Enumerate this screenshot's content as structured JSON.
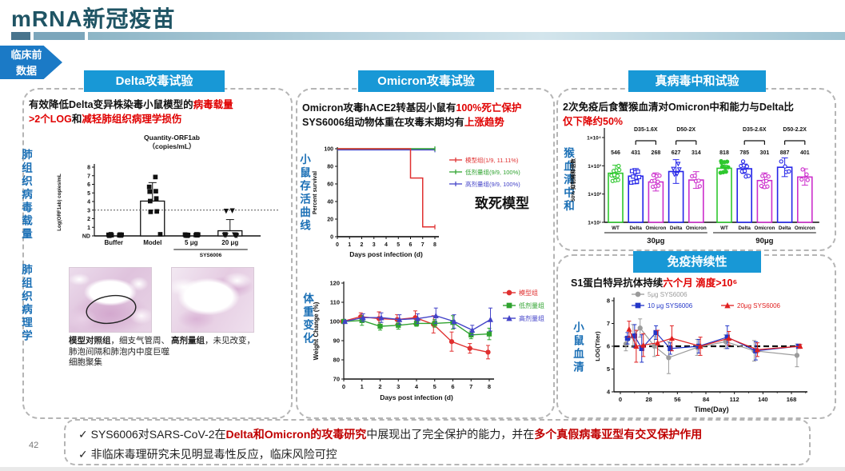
{
  "slide": {
    "title": "mRNA新冠疫苗",
    "page_number": "42",
    "stage_badge_line1": "临床前",
    "stage_badge_line2": "数据",
    "colors": {
      "accent_blue": "#1898d6",
      "title_teal": "#1f5464",
      "emphasis_red": "#e00000",
      "side_label_blue": "#1a6fb5",
      "badge_blue": "#1b7ac6"
    }
  },
  "panels": {
    "delta": {
      "header": "Delta攻毒试验",
      "headline": [
        [
          {
            "t": "有效降低Delta变异株染毒小鼠模型的"
          },
          {
            "t": "病毒载量",
            "c": "#e00000"
          }
        ],
        [
          {
            "t": ">2个LOG",
            "c": "#e00000"
          },
          {
            "t": "和"
          },
          {
            "t": "减轻肺组织病理学损伤",
            "c": "#e00000"
          }
        ]
      ],
      "side_labels": [
        "肺组织病毒载量",
        "肺组织病理学"
      ],
      "histology_captions": [
        [
          {
            "t": "模型对照组",
            "b": true
          },
          {
            "t": "，细支气管周、肺泡间隔和肺泡内中度巨噬细胞聚集"
          }
        ],
        [
          {
            "t": "高剂量组",
            "b": true
          },
          {
            "t": "，未见改变，"
          }
        ]
      ]
    },
    "omicron": {
      "header": "Omicron攻毒试验",
      "headline": [
        [
          {
            "t": "Omicron攻毒hACE2转基因小鼠有"
          },
          {
            "t": "100%死亡保护",
            "c": "#e00000"
          }
        ],
        [
          {
            "t": "SYS6006组动物体重在攻毒末期均有"
          },
          {
            "t": "上涨趋势",
            "c": "#e00000"
          }
        ]
      ],
      "side_labels": [
        "小鼠存活曲线",
        "体重变化"
      ]
    },
    "neutralization": {
      "header": "真病毒中和试验",
      "headline": [
        [
          {
            "t": "2次免疫后食蟹猴血清对Omicron中和能力与Delta比"
          }
        ],
        [
          {
            "t": "仅下降约50%",
            "c": "#e00000"
          }
        ]
      ],
      "side_labels": [
        "猴血清中和"
      ]
    },
    "persistence": {
      "header": "免疫持续性",
      "headline": [
        [
          {
            "t": "S1蛋白特异抗体持续"
          },
          {
            "t": "六个月 滴度>10⁶",
            "c": "#e00000"
          }
        ]
      ],
      "side_labels": [
        "小鼠血清"
      ]
    }
  },
  "summary": {
    "check": "✓",
    "lines": [
      [
        {
          "t": " SYS6006对SARS-CoV-2在"
        },
        {
          "t": "Delta和Omicron的攻毒研究",
          "c": "#c00000",
          "b": true
        },
        {
          "t": "中展现出了完全保护的能力，并在"
        },
        {
          "t": "多个真假病毒亚型有交叉保护作用",
          "c": "#c00000",
          "b": true
        }
      ],
      [
        {
          "t": " 非临床毒理研究未见明显毒性反应，临床风险可控"
        }
      ]
    ]
  },
  "chart_data": [
    {
      "id": "viral_load",
      "type": "scatter-bar",
      "title": [
        "Quantity-ORF1ab",
        "（copies/mL）"
      ],
      "ylabel": "Log(ORF1ab) copies/mL",
      "ytick_labels": [
        "ND",
        "1",
        "2",
        "3",
        "4",
        "5",
        "6",
        "7",
        "8"
      ],
      "ylim": [
        0,
        8
      ],
      "dashed_y": 3,
      "categories": [
        "Buffer",
        "Model",
        "5 μg",
        "20 μg"
      ],
      "group_label": "SYS6006",
      "bars": [
        0,
        4.05,
        0,
        0.6
      ],
      "err_hi": [
        0,
        6.2,
        0,
        1.9
      ],
      "marker": [
        "square",
        "square",
        "square",
        "trid"
      ],
      "points": [
        [
          0,
          0,
          0,
          0,
          0,
          0,
          0,
          0,
          0
        ],
        [
          6.85,
          5.7,
          5.2,
          5.15,
          4.35,
          4.05,
          2.85,
          2.8,
          0
        ],
        [
          0,
          0,
          0,
          0,
          0,
          0,
          0,
          0,
          0
        ],
        [
          2.95,
          2.9,
          0,
          0,
          0,
          0,
          0,
          0,
          0
        ]
      ]
    },
    {
      "id": "survival",
      "type": "step-line",
      "xlabel": "Days post infection (d)",
      "ylabel": "Percent survival",
      "xlim": [
        0,
        8
      ],
      "ylim": [
        0,
        100
      ],
      "annotation": "致死模型",
      "series": [
        {
          "name": "模型组(1/9, 11.11%)",
          "color": "#e03030",
          "points": [
            [
              0,
              100
            ],
            [
              6,
              100
            ],
            [
              6,
              66.7
            ],
            [
              7,
              66.7
            ],
            [
              7,
              11.1
            ],
            [
              8,
              11.1
            ]
          ]
        },
        {
          "name": "低剂量组(9/9, 100%)",
          "color": "#2fa32f",
          "points": [
            [
              0,
              100
            ],
            [
              8,
              100
            ]
          ]
        },
        {
          "name": "高剂量组(9/9, 100%)",
          "color": "#4343c8",
          "points": [
            [
              0,
              100
            ],
            [
              8,
              100
            ]
          ]
        }
      ]
    },
    {
      "id": "weight",
      "type": "line",
      "xlabel": "Days post infection (d)",
      "ylabel": "Weight Change (%)",
      "x": [
        0,
        1,
        2,
        3,
        4,
        5,
        6,
        7,
        8
      ],
      "ylim": [
        70,
        120
      ],
      "series": [
        {
          "name": "模型组",
          "color": "#e03030",
          "marker": "circle",
          "values": [
            100,
            102.5,
            101.5,
            101,
            102,
            98.5,
            89.5,
            86,
            84
          ],
          "err": [
            0.5,
            2,
            3.5,
            2.5,
            3.5,
            4.5,
            5,
            2.5,
            3.5
          ]
        },
        {
          "name": "低剂量组",
          "color": "#2fa32f",
          "marker": "square",
          "values": [
            100,
            100.5,
            97.5,
            98,
            99,
            99,
            99.5,
            93,
            93.5
          ],
          "err": [
            0.5,
            2.5,
            2,
            2,
            1.5,
            2,
            3.5,
            2,
            3
          ]
        },
        {
          "name": "高剂量组",
          "color": "#4343c8",
          "marker": "tri",
          "values": [
            100,
            102,
            102,
            101,
            101.5,
            103,
            100,
            95.5,
            101
          ],
          "err": [
            0.5,
            2,
            2.5,
            2.5,
            2.5,
            4,
            3.5,
            2.5,
            6
          ]
        }
      ]
    },
    {
      "id": "neutralization",
      "type": "bar-log",
      "ylabel": "50% 抑制稀释倍数",
      "ytick_labels": [
        "1×10¹",
        "1×10²",
        "1×10³",
        "1×10⁴"
      ],
      "bar_labels": [
        "WT",
        "Delta",
        "Omicron",
        "Delta",
        "Omicron",
        "WT",
        "Delta",
        "Omicron",
        "Delta",
        "Omicron"
      ],
      "values": [
        546,
        431,
        268,
        627,
        314,
        818,
        785,
        301,
        887,
        401
      ],
      "err_hi": [
        1050,
        800,
        560,
        1650,
        620,
        1060,
        1150,
        560,
        1900,
        780
      ],
      "colors": [
        "#2ec82e",
        "#2525e8",
        "#cc2ecc",
        "#2525e8",
        "#cc2ecc",
        "#2ec82e",
        "#2525e8",
        "#cc2ecc",
        "#2525e8",
        "#cc2ecc"
      ],
      "marker": [
        "circle",
        "square",
        "circle",
        "trid",
        "circle",
        "circle",
        "circle",
        "circle",
        "circle",
        "circle"
      ],
      "n_points": [
        11,
        9,
        9,
        5,
        5,
        10,
        8,
        8,
        4,
        4
      ],
      "brackets": [
        {
          "label": "D35-1.6X",
          "from": 1,
          "to": 2
        },
        {
          "label": "D50-2X",
          "from": 3,
          "to": 4
        },
        {
          "label": "D35-2.6X",
          "from": 6,
          "to": 7
        },
        {
          "label": "D50-2.2X",
          "from": 8,
          "to": 9
        }
      ],
      "groups": [
        {
          "label": "30μg",
          "from": 0,
          "to": 4
        },
        {
          "label": "90μg",
          "from": 5,
          "to": 9
        }
      ]
    },
    {
      "id": "persistence",
      "type": "line",
      "xlabel": "Time(Day)",
      "ylabel": "LOG(Titer)",
      "xticks": [
        0,
        28,
        56,
        84,
        112,
        140,
        168
      ],
      "ylim": [
        4,
        8
      ],
      "dashed_y": 6,
      "x": [
        7,
        14,
        21,
        35,
        49,
        77,
        105,
        133,
        175
      ],
      "series": [
        {
          "name": "5μg SYS6006",
          "color": "#9b9b9b",
          "marker": "circle",
          "values": [
            6.1,
            6.45,
            6.8,
            6.0,
            5.5,
            5.95,
            6.2,
            5.8,
            5.6
          ],
          "err": [
            0.3,
            0.5,
            0.4,
            0.45,
            0.7,
            0.35,
            0.3,
            0.45,
            0.5
          ]
        },
        {
          "name": "10 μg SYS6006",
          "color": "#2236c8",
          "marker": "square",
          "values": [
            6.35,
            6.45,
            5.9,
            6.6,
            5.9,
            6.0,
            6.4,
            5.8,
            6.0
          ],
          "err": [
            0.25,
            0.5,
            0.6,
            0.3,
            0.25,
            0.3,
            0.5,
            0.4,
            0.08
          ]
        },
        {
          "name": "20μg SYS6006",
          "color": "#e02020",
          "marker": "tri",
          "values": [
            6.75,
            6.0,
            6.05,
            6.15,
            6.35,
            6.0,
            6.35,
            5.85,
            6.0
          ],
          "err": [
            0.35,
            0.7,
            0.5,
            0.55,
            0.55,
            0.4,
            0.3,
            0.3,
            0.08
          ]
        }
      ]
    }
  ]
}
